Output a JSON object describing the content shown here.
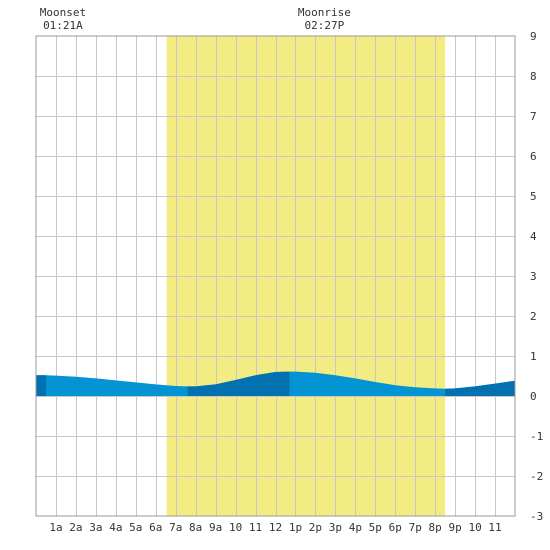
{
  "chart_data": {
    "type": "area",
    "title": "",
    "xlabel": "",
    "ylabel": "",
    "ylim": [
      -3,
      9
    ],
    "xlim": [
      0,
      24
    ],
    "grid": true,
    "y_ticks": [
      -3,
      -2,
      -1,
      0,
      1,
      2,
      3,
      4,
      5,
      6,
      7,
      8,
      9
    ],
    "x_ticks": [
      {
        "hour": 1,
        "label": "1a"
      },
      {
        "hour": 2,
        "label": "2a"
      },
      {
        "hour": 3,
        "label": "3a"
      },
      {
        "hour": 4,
        "label": "4a"
      },
      {
        "hour": 5,
        "label": "5a"
      },
      {
        "hour": 6,
        "label": "6a"
      },
      {
        "hour": 7,
        "label": "7a"
      },
      {
        "hour": 8,
        "label": "8a"
      },
      {
        "hour": 9,
        "label": "9a"
      },
      {
        "hour": 10,
        "label": "10"
      },
      {
        "hour": 11,
        "label": "11"
      },
      {
        "hour": 12,
        "label": "12"
      },
      {
        "hour": 13,
        "label": "1p"
      },
      {
        "hour": 14,
        "label": "2p"
      },
      {
        "hour": 15,
        "label": "3p"
      },
      {
        "hour": 16,
        "label": "4p"
      },
      {
        "hour": 17,
        "label": "5p"
      },
      {
        "hour": 18,
        "label": "6p"
      },
      {
        "hour": 19,
        "label": "7p"
      },
      {
        "hour": 20,
        "label": "8p"
      },
      {
        "hour": 21,
        "label": "9p"
      },
      {
        "hour": 22,
        "label": "10"
      },
      {
        "hour": 23,
        "label": "11"
      }
    ],
    "daylight": {
      "start_hour": 6.55,
      "end_hour": 20.5,
      "color": "#f3ec83"
    },
    "moon_events": [
      {
        "label": "Moonset",
        "time": "01:21A",
        "hour": 1.35
      },
      {
        "label": "Moonrise",
        "time": "02:27P",
        "hour": 14.45
      }
    ],
    "tide": {
      "color_light": "#0493d3",
      "color_dark": "#0271b0",
      "x": [
        0,
        0.5,
        1,
        2,
        3,
        4,
        5,
        6,
        7,
        7.6,
        8,
        9,
        10,
        11,
        12,
        12.7,
        13,
        14,
        15,
        16,
        17,
        18,
        19,
        20,
        20.5,
        21,
        22,
        23,
        24
      ],
      "y": [
        0.52,
        0.52,
        0.51,
        0.48,
        0.44,
        0.39,
        0.34,
        0.29,
        0.25,
        0.24,
        0.24,
        0.29,
        0.4,
        0.52,
        0.6,
        0.61,
        0.61,
        0.58,
        0.52,
        0.44,
        0.35,
        0.27,
        0.22,
        0.19,
        0.18,
        0.19,
        0.24,
        0.31,
        0.38
      ],
      "dark_ranges": [
        [
          0,
          0.5
        ],
        [
          7.6,
          12.7
        ],
        [
          20.5,
          24
        ]
      ]
    }
  }
}
